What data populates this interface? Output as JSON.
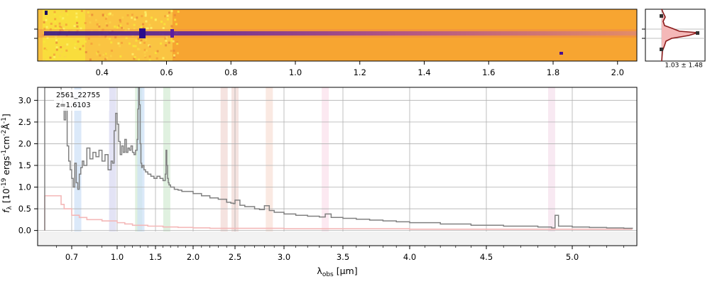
{
  "chart_data": [
    {
      "type": "heatmap",
      "x_ticks": [
        "0.4",
        "0.6",
        "0.8",
        "1.0",
        "1.2",
        "1.4",
        "1.6",
        "1.8",
        "2.0"
      ],
      "x_tick_values": [
        0.4,
        0.6,
        0.8,
        1.0,
        1.2,
        1.4,
        1.6,
        1.8,
        2.0
      ],
      "xlim": [
        0.2,
        2.06
      ],
      "colormap": "plasma",
      "trace_wavelength_start": 0.23
    },
    {
      "type": "line",
      "xlabel_text": "1.03 ± 1.48",
      "colors": {
        "profile": "#8b1a1a",
        "fill": "#f4b8b8"
      }
    },
    {
      "type": "line",
      "annotation_id": "2561_22755",
      "annotation_z": "z=1.6103",
      "ylabel": "f_λ [10^-19 ergs^-1 cm^-2 Å^-1]",
      "xlabel": "λ_obs [μm]",
      "ylim": [
        -0.35,
        3.3
      ],
      "y_ticks": [
        0.0,
        0.5,
        1.0,
        1.5,
        2.0,
        2.5,
        3.0
      ],
      "x_ticks": [
        "0.7",
        "1.0",
        "1.5",
        "2.0",
        "2.5",
        "3.0",
        "3.5",
        "4.0",
        "4.5",
        "5.0"
      ],
      "x_tick_values": [
        0.7,
        1.0,
        1.5,
        2.0,
        2.5,
        3.0,
        3.5,
        4.0,
        4.5,
        5.0
      ],
      "xlim": [
        0.6,
        5.4
      ],
      "grid": true,
      "series": [
        {
          "color": "#808080",
          "x": [
            0.62,
            0.63,
            0.64,
            0.65,
            0.66,
            0.67,
            0.68,
            0.69,
            0.7,
            0.71,
            0.72,
            0.73,
            0.74,
            0.75,
            0.76,
            0.77,
            0.78,
            0.8,
            0.82,
            0.84,
            0.86,
            0.88,
            0.9,
            0.92,
            0.94,
            0.96,
            0.97,
            0.98,
            0.99,
            1.0,
            1.02,
            1.04,
            1.06,
            1.08,
            1.1,
            1.12,
            1.14,
            1.16,
            1.18,
            1.2,
            1.22,
            1.24,
            1.26,
            1.27,
            1.28,
            1.29,
            1.3,
            1.31,
            1.32,
            1.33,
            1.35,
            1.37,
            1.4,
            1.44,
            1.48,
            1.52,
            1.56,
            1.6,
            1.63,
            1.64,
            1.65,
            1.66,
            1.67,
            1.68,
            1.7,
            1.75,
            1.8,
            1.85,
            1.9,
            2.0,
            2.1,
            2.2,
            2.3,
            2.4,
            2.45,
            2.48,
            2.5,
            2.55,
            2.6,
            2.7,
            2.75,
            2.8,
            2.85,
            2.9,
            3.0,
            3.1,
            3.2,
            3.3,
            3.35,
            3.4,
            3.5,
            3.6,
            3.7,
            3.8,
            3.9,
            4.0,
            4.2,
            4.4,
            4.6,
            4.8,
            4.88,
            4.9,
            4.92,
            5.0,
            5.1,
            5.2,
            5.3,
            5.35
          ],
          "values": [
            3.3,
            3.1,
            2.9,
            2.55,
            2.8,
            1.95,
            1.6,
            1.4,
            1.2,
            1.0,
            1.55,
            1.1,
            0.95,
            1.3,
            1.45,
            1.6,
            1.5,
            1.9,
            1.65,
            1.8,
            1.7,
            1.85,
            1.6,
            1.75,
            1.4,
            1.6,
            1.55,
            2.3,
            2.7,
            2.45,
            2.05,
            1.75,
            1.95,
            1.8,
            2.1,
            1.8,
            1.9,
            1.85,
            1.95,
            1.8,
            1.75,
            1.85,
            2.1,
            2.8,
            3.3,
            2.9,
            2.0,
            1.55,
            1.45,
            1.5,
            1.4,
            1.35,
            1.3,
            1.25,
            1.2,
            1.25,
            1.2,
            1.15,
            1.3,
            1.85,
            1.5,
            1.2,
            1.1,
            1.05,
            1.0,
            0.95,
            0.93,
            0.9,
            0.9,
            0.85,
            0.8,
            0.75,
            0.72,
            0.65,
            0.63,
            0.62,
            0.7,
            0.58,
            0.55,
            0.5,
            0.48,
            0.57,
            0.46,
            0.42,
            0.38,
            0.35,
            0.33,
            0.31,
            0.38,
            0.3,
            0.28,
            0.26,
            0.24,
            0.22,
            0.2,
            0.18,
            0.15,
            0.12,
            0.1,
            0.08,
            0.06,
            0.35,
            0.1,
            0.08,
            0.07,
            0.06,
            0.05,
            0.04
          ]
        },
        {
          "color": "#f4b8b8",
          "x": [
            0.62,
            0.63,
            0.65,
            0.7,
            0.75,
            0.8,
            0.9,
            1.0,
            1.1,
            1.2,
            1.4,
            1.6,
            1.8,
            2.0,
            2.2,
            2.5,
            3.0,
            3.5,
            4.0,
            4.5,
            5.0,
            5.35
          ],
          "values": [
            0.8,
            0.6,
            0.5,
            0.35,
            0.3,
            0.25,
            0.22,
            0.18,
            0.15,
            0.12,
            0.1,
            0.08,
            0.07,
            0.06,
            0.05,
            0.05,
            0.04,
            0.04,
            0.03,
            0.03,
            0.03,
            0.03
          ]
        }
      ],
      "shaded_bands": [
        {
          "x": 0.74,
          "color": "#cfe1f7"
        },
        {
          "x": 0.97,
          "color": "#d9d9f2"
        },
        {
          "x": 1.28,
          "color": "#d6ecd6"
        },
        {
          "x": 1.31,
          "color": "#cfe1f7"
        },
        {
          "x": 1.65,
          "color": "#d6ecd6"
        },
        {
          "x": 2.37,
          "color": "#f2d9d5"
        },
        {
          "x": 2.5,
          "color": "#f2d9d5"
        },
        {
          "x": 2.85,
          "color": "#f8e1d8"
        },
        {
          "x": 3.35,
          "color": "#fbe1ec"
        },
        {
          "x": 4.88,
          "color": "#f6e1ee"
        }
      ]
    }
  ]
}
